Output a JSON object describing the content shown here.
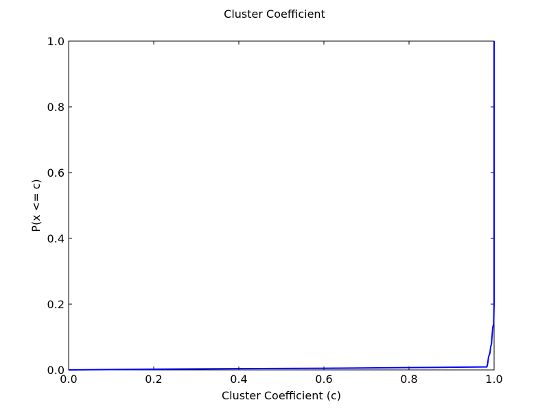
{
  "chart_data": {
    "type": "line",
    "title": "Cluster Coefficient",
    "xlabel": "Cluster Coefficient (c)",
    "ylabel": "P(x <= c)",
    "xlim": [
      0.0,
      1.0
    ],
    "ylim": [
      0.0,
      1.0
    ],
    "x_ticks": [
      "0.0",
      "0.2",
      "0.4",
      "0.6",
      "0.8",
      "1.0"
    ],
    "y_ticks": [
      "0.0",
      "0.2",
      "0.4",
      "0.6",
      "0.8",
      "1.0"
    ],
    "grid": false,
    "legend": "none",
    "series": [
      {
        "color": "#0000ff",
        "x": [
          0.0,
          0.2,
          0.4,
          0.6,
          0.8,
          0.9,
          0.983,
          0.985,
          0.987,
          0.99,
          0.992,
          0.994,
          0.995,
          0.997,
          0.998,
          0.999,
          1.0,
          1.0
        ],
        "y": [
          0.0,
          0.002,
          0.004,
          0.005,
          0.007,
          0.008,
          0.009,
          0.02,
          0.04,
          0.05,
          0.07,
          0.08,
          0.1,
          0.13,
          0.135,
          0.14,
          0.2,
          1.0
        ]
      }
    ]
  }
}
